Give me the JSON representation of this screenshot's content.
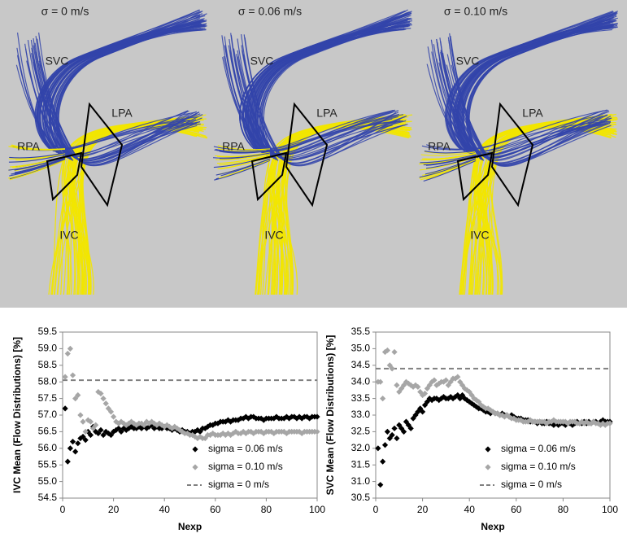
{
  "panels": [
    {
      "title": "σ = 0 m/s",
      "labels": {
        "svc": "SVC",
        "lpa": "LPA",
        "rpa": "RPA",
        "ivc": "IVC"
      }
    },
    {
      "title": "σ = 0.06 m/s",
      "labels": {
        "svc": "SVC",
        "lpa": "LPA",
        "rpa": "RPA",
        "ivc": "IVC"
      }
    },
    {
      "title": "σ = 0.10 m/s",
      "labels": {
        "svc": "SVC",
        "lpa": "LPA",
        "rpa": "RPA",
        "ivc": "IVC"
      }
    }
  ],
  "chart_data": [
    {
      "type": "scatter",
      "y_label": "IVC Mean (Flow Distributions) [%]",
      "x_label": "Nexp",
      "xlim": [
        0,
        100
      ],
      "xticks": [
        0,
        20,
        40,
        60,
        80,
        100
      ],
      "ylim": [
        54.5,
        59.5
      ],
      "yticks": [
        54.5,
        {
          "value": 55,
          "label": "55.0"
        },
        55.5,
        {
          "value": 56,
          "label": "56.0"
        },
        56.5,
        {
          "value": 57,
          "label": "57.0"
        },
        57.5,
        {
          "value": 58,
          "label": "58.0"
        },
        58.5,
        {
          "value": 59,
          "label": "59.0"
        },
        59.5
      ],
      "legend": "lower right",
      "x": [
        1,
        2,
        3,
        4,
        5,
        6,
        7,
        8,
        9,
        10,
        11,
        12,
        13,
        14,
        15,
        16,
        17,
        18,
        19,
        20,
        21,
        22,
        23,
        24,
        25,
        26,
        27,
        28,
        29,
        30,
        31,
        32,
        33,
        34,
        35,
        36,
        37,
        38,
        39,
        40,
        41,
        42,
        43,
        44,
        45,
        46,
        47,
        48,
        49,
        50,
        51,
        52,
        53,
        54,
        55,
        56,
        57,
        58,
        59,
        60,
        61,
        62,
        63,
        64,
        65,
        66,
        67,
        68,
        69,
        70,
        71,
        72,
        73,
        74,
        75,
        76,
        77,
        78,
        79,
        80,
        81,
        82,
        83,
        84,
        85,
        86,
        87,
        88,
        89,
        90,
        91,
        92,
        93,
        94,
        95,
        96,
        97,
        98,
        99,
        100
      ],
      "series": [
        {
          "name": "sigma = 0.06 m/s",
          "color": "#000000",
          "values": [
            57.2,
            55.6,
            56.0,
            56.2,
            55.9,
            56.15,
            56.3,
            56.35,
            56.25,
            56.5,
            56.4,
            56.65,
            56.5,
            56.45,
            56.55,
            56.4,
            56.5,
            56.45,
            56.4,
            56.5,
            56.55,
            56.6,
            56.5,
            56.6,
            56.55,
            56.6,
            56.65,
            56.6,
            56.6,
            56.65,
            56.6,
            56.7,
            56.6,
            56.65,
            56.7,
            56.6,
            56.65,
            56.6,
            56.6,
            56.65,
            56.6,
            56.6,
            56.55,
            56.6,
            56.55,
            56.5,
            56.55,
            56.5,
            56.5,
            56.45,
            56.5,
            56.5,
            56.55,
            56.5,
            56.6,
            56.6,
            56.65,
            56.7,
            56.7,
            56.75,
            56.75,
            56.8,
            56.8,
            56.8,
            56.85,
            56.8,
            56.85,
            56.85,
            56.85,
            56.9,
            56.9,
            56.95,
            56.9,
            56.95,
            56.95,
            56.9,
            56.9,
            56.9,
            56.85,
            56.9,
            56.9,
            56.9,
            56.9,
            56.95,
            56.9,
            56.9,
            56.9,
            56.95,
            56.9,
            56.95,
            56.95,
            56.9,
            56.95,
            56.9,
            56.95,
            56.95,
            56.9,
            56.95,
            56.95,
            56.95
          ]
        },
        {
          "name": "sigma = 0.10 m/s",
          "color": "#a6a6a6",
          "values": [
            58.15,
            58.85,
            59.0,
            58.2,
            57.5,
            57.6,
            57.0,
            56.8,
            56.5,
            56.85,
            56.8,
            56.6,
            56.7,
            57.7,
            57.65,
            57.5,
            57.35,
            57.2,
            57.1,
            56.95,
            56.8,
            56.75,
            56.8,
            56.75,
            56.7,
            56.75,
            56.8,
            56.75,
            56.7,
            56.75,
            56.75,
            56.7,
            56.8,
            56.75,
            56.8,
            56.75,
            56.7,
            56.75,
            56.7,
            56.65,
            56.7,
            56.65,
            56.6,
            56.65,
            56.6,
            56.55,
            56.5,
            56.45,
            56.45,
            56.4,
            56.4,
            56.35,
            56.3,
            56.35,
            56.3,
            56.3,
            56.4,
            56.4,
            56.45,
            56.4,
            56.4,
            56.4,
            56.45,
            56.4,
            56.45,
            56.4,
            56.45,
            56.5,
            56.45,
            56.45,
            56.5,
            56.45,
            56.5,
            56.5,
            56.45,
            56.5,
            56.5,
            56.5,
            56.45,
            56.5,
            56.5,
            56.5,
            56.45,
            56.5,
            56.5,
            56.5,
            56.5,
            56.45,
            56.5,
            56.5,
            56.5,
            56.5,
            56.5,
            56.45,
            56.5,
            56.5,
            56.5,
            56.5,
            56.5,
            56.5
          ]
        }
      ],
      "reference_lines": [
        {
          "name": "sigma = 0 m/s",
          "color": "#808080",
          "value": 58.05
        }
      ]
    },
    {
      "type": "scatter",
      "y_label": "SVC Mean (Flow Distributions) [%]",
      "x_label": "Nexp",
      "xlim": [
        0,
        100
      ],
      "xticks": [
        0,
        20,
        40,
        60,
        80,
        100
      ],
      "ylim": [
        30.5,
        35.5
      ],
      "yticks": [
        30.5,
        {
          "value": 31,
          "label": "31.0"
        },
        31.5,
        {
          "value": 32,
          "label": "32.0"
        },
        32.5,
        {
          "value": 33,
          "label": "33.0"
        },
        33.5,
        {
          "value": 34,
          "label": "34.0"
        },
        34.5,
        {
          "value": 35,
          "label": "35.0"
        },
        35.5
      ],
      "legend": "lower right",
      "x": [
        1,
        2,
        3,
        4,
        5,
        6,
        7,
        8,
        9,
        10,
        11,
        12,
        13,
        14,
        15,
        16,
        17,
        18,
        19,
        20,
        21,
        22,
        23,
        24,
        25,
        26,
        27,
        28,
        29,
        30,
        31,
        32,
        33,
        34,
        35,
        36,
        37,
        38,
        39,
        40,
        41,
        42,
        43,
        44,
        45,
        46,
        47,
        48,
        49,
        50,
        51,
        52,
        53,
        54,
        55,
        56,
        57,
        58,
        59,
        60,
        61,
        62,
        63,
        64,
        65,
        66,
        67,
        68,
        69,
        70,
        71,
        72,
        73,
        74,
        75,
        76,
        77,
        78,
        79,
        80,
        81,
        82,
        83,
        84,
        85,
        86,
        87,
        88,
        89,
        90,
        91,
        92,
        93,
        94,
        95,
        96,
        97,
        98,
        99,
        100
      ],
      "series": [
        {
          "name": "sigma = 0.06 m/s",
          "color": "#000000",
          "values": [
            32.0,
            30.9,
            31.6,
            32.1,
            32.5,
            32.3,
            32.4,
            32.6,
            32.3,
            32.7,
            32.6,
            32.5,
            32.8,
            32.7,
            32.6,
            32.9,
            33.0,
            33.1,
            33.2,
            33.1,
            33.3,
            33.4,
            33.5,
            33.45,
            33.5,
            33.5,
            33.45,
            33.5,
            33.55,
            33.5,
            33.5,
            33.55,
            33.5,
            33.55,
            33.6,
            33.5,
            33.6,
            33.5,
            33.45,
            33.4,
            33.35,
            33.3,
            33.25,
            33.2,
            33.2,
            33.15,
            33.1,
            33.1,
            33.05,
            33.1,
            33.05,
            33.05,
            33.0,
            33.05,
            33.0,
            33.0,
            32.95,
            33.0,
            32.95,
            32.9,
            32.9,
            32.9,
            32.85,
            32.85,
            32.85,
            32.8,
            32.8,
            32.8,
            32.75,
            32.8,
            32.75,
            32.75,
            32.8,
            32.75,
            32.75,
            32.7,
            32.75,
            32.7,
            32.75,
            32.75,
            32.7,
            32.75,
            32.75,
            32.7,
            32.75,
            32.8,
            32.75,
            32.75,
            32.8,
            32.75,
            32.8,
            32.75,
            32.8,
            32.8,
            32.75,
            32.8,
            32.85,
            32.8,
            32.8,
            32.8
          ]
        },
        {
          "name": "sigma = 0.10 m/s",
          "color": "#a6a6a6",
          "values": [
            34.0,
            34.0,
            33.5,
            34.9,
            34.95,
            34.5,
            34.4,
            34.9,
            33.9,
            33.7,
            33.8,
            33.9,
            34.0,
            33.95,
            33.9,
            33.85,
            33.9,
            33.85,
            33.7,
            33.6,
            33.65,
            33.8,
            33.9,
            34.0,
            34.05,
            33.9,
            33.95,
            34.0,
            34.0,
            34.05,
            33.9,
            34.0,
            34.1,
            34.1,
            34.15,
            34.0,
            33.9,
            33.8,
            33.75,
            33.7,
            33.6,
            33.5,
            33.45,
            33.4,
            33.3,
            33.25,
            33.2,
            33.2,
            33.15,
            33.1,
            33.05,
            33.05,
            33.0,
            33.0,
            32.95,
            33.0,
            32.95,
            32.9,
            32.9,
            32.85,
            32.85,
            32.85,
            32.8,
            32.8,
            32.8,
            32.85,
            32.8,
            32.8,
            32.8,
            32.8,
            32.8,
            32.8,
            32.75,
            32.8,
            32.8,
            32.85,
            32.8,
            32.8,
            32.8,
            32.8,
            32.8,
            32.75,
            32.8,
            32.8,
            32.8,
            32.75,
            32.75,
            32.8,
            32.75,
            32.8,
            32.75,
            32.75,
            32.8,
            32.75,
            32.75,
            32.7,
            32.75,
            32.7,
            32.75,
            32.75
          ]
        }
      ],
      "reference_lines": [
        {
          "name": "sigma = 0 m/s",
          "color": "#808080",
          "value": 34.4
        }
      ]
    }
  ]
}
